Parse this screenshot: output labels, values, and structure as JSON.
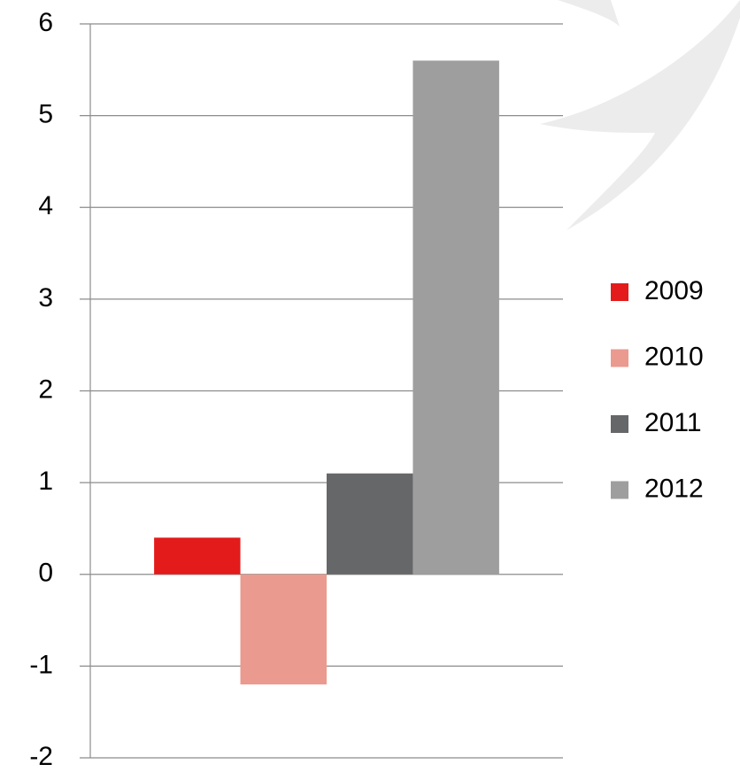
{
  "chart_data": {
    "type": "bar",
    "categories": [
      null
    ],
    "series": [
      {
        "name": "2009",
        "color": "#e31b1b",
        "values": [
          0.4
        ]
      },
      {
        "name": "2010",
        "color": "#ea9a8f",
        "values": [
          -1.2
        ]
      },
      {
        "name": "2011",
        "color": "#666769",
        "values": [
          1.1
        ]
      },
      {
        "name": "2012",
        "color": "#9e9e9f",
        "values": [
          5.6
        ]
      }
    ],
    "ylim": [
      -2,
      6
    ],
    "yticks": [
      -2,
      -1,
      0,
      1,
      2,
      3,
      4,
      5,
      6
    ],
    "grid": true,
    "legend": "right"
  }
}
